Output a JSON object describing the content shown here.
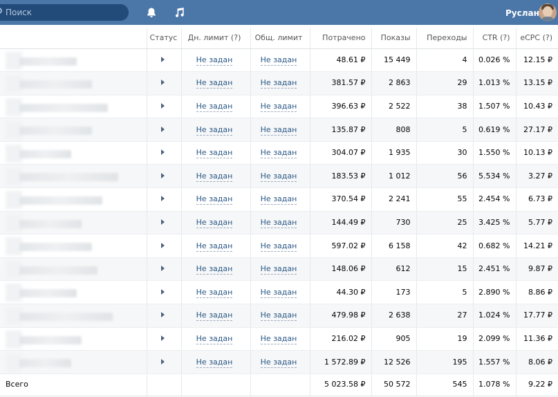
{
  "topbar": {
    "search_placeholder": "Поиск",
    "username": "Руслан",
    "accent": "#4a76a8"
  },
  "columns": [
    "Статус",
    "Дн. лимит (?)",
    "Общ. лимит",
    "Потрачено",
    "Показы",
    "Переходы",
    "CTR (?)",
    "eCPC (?)"
  ],
  "rows": [
    {
      "blur": 0.55,
      "day_limit": "Не задан",
      "total_limit": "Не задан",
      "spent": "48.61 ₽",
      "impressions": "15 449",
      "clicks": "4",
      "ctr": "0.026 %",
      "ecpc": "12.15 ₽"
    },
    {
      "blur": 0.7,
      "day_limit": "Не задан",
      "total_limit": "Не задан",
      "spent": "381.57 ₽",
      "impressions": "2 863",
      "clicks": "29",
      "ctr": "1.013 %",
      "ecpc": "13.15 ₽"
    },
    {
      "blur": 0.85,
      "day_limit": "Не задан",
      "total_limit": "Не задан",
      "spent": "396.63 ₽",
      "impressions": "2 522",
      "clicks": "38",
      "ctr": "1.507 %",
      "ecpc": "10.43 ₽"
    },
    {
      "blur": 0.7,
      "day_limit": "Не задан",
      "total_limit": "Не задан",
      "spent": "135.87 ₽",
      "impressions": "808",
      "clicks": "5",
      "ctr": "0.619 %",
      "ecpc": "27.17 ₽"
    },
    {
      "blur": 0.5,
      "day_limit": "Не задан",
      "total_limit": "Не задан",
      "spent": "304.07 ₽",
      "impressions": "1 935",
      "clicks": "30",
      "ctr": "1.550 %",
      "ecpc": "10.13 ₽"
    },
    {
      "blur": 0.95,
      "day_limit": "Не задан",
      "total_limit": "Не задан",
      "spent": "183.53 ₽",
      "impressions": "1 012",
      "clicks": "56",
      "ctr": "5.534 %",
      "ecpc": "3.27 ₽"
    },
    {
      "blur": 0.8,
      "day_limit": "Не задан",
      "total_limit": "Не задан",
      "spent": "370.54 ₽",
      "impressions": "2 241",
      "clicks": "55",
      "ctr": "2.454 %",
      "ecpc": "6.73 ₽"
    },
    {
      "blur": 0.6,
      "day_limit": "Не задан",
      "total_limit": "Не задан",
      "spent": "144.49 ₽",
      "impressions": "730",
      "clicks": "25",
      "ctr": "3.425 %",
      "ecpc": "5.77 ₽"
    },
    {
      "blur": 0.7,
      "day_limit": "Не задан",
      "total_limit": "Не задан",
      "spent": "597.02 ₽",
      "impressions": "6 158",
      "clicks": "42",
      "ctr": "0.682 %",
      "ecpc": "14.21 ₽"
    },
    {
      "blur": 0.75,
      "day_limit": "Не задан",
      "total_limit": "Не задан",
      "spent": "148.06 ₽",
      "impressions": "612",
      "clicks": "15",
      "ctr": "2.451 %",
      "ecpc": "9.87 ₽"
    },
    {
      "blur": 0.55,
      "day_limit": "Не задан",
      "total_limit": "Не задан",
      "spent": "44.30 ₽",
      "impressions": "173",
      "clicks": "5",
      "ctr": "2.890 %",
      "ecpc": "8.86 ₽"
    },
    {
      "blur": 0.9,
      "day_limit": "Не задан",
      "total_limit": "Не задан",
      "spent": "479.98 ₽",
      "impressions": "2 638",
      "clicks": "27",
      "ctr": "1.024 %",
      "ecpc": "17.77 ₽"
    },
    {
      "blur": 0.6,
      "day_limit": "Не задан",
      "total_limit": "Не задан",
      "spent": "216.02 ₽",
      "impressions": "905",
      "clicks": "19",
      "ctr": "2.099 %",
      "ecpc": "11.36 ₽"
    },
    {
      "blur": 0.5,
      "day_limit": "Не задан",
      "total_limit": "Не задан",
      "spent": "1 572.89 ₽",
      "impressions": "12 526",
      "clicks": "195",
      "ctr": "1.557 %",
      "ecpc": "8.06 ₽"
    }
  ],
  "total": {
    "label": "Всего",
    "spent": "5 023.58 ₽",
    "impressions": "50 572",
    "clicks": "545",
    "ctr": "1.078 %",
    "ecpc": "9.22 ₽"
  }
}
